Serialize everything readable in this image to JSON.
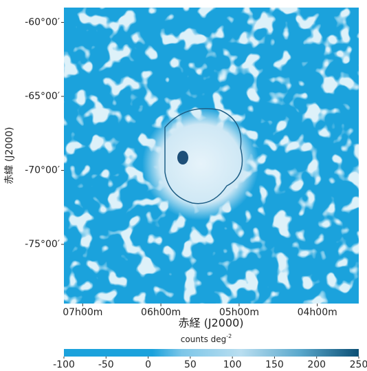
{
  "chart_data": {
    "type": "image",
    "x_label": "赤経 (J2000)",
    "y_label": "赤緯 (J2000)",
    "xlim": [
      7.24,
      3.47
    ],
    "ylim": [
      -79,
      -59
    ],
    "xticks": [
      {
        "value": 7,
        "label": "07h00m"
      },
      {
        "value": 6,
        "label": "06h00m"
      },
      {
        "value": 5,
        "label": "05h00m"
      },
      {
        "value": 4,
        "label": "04h00m"
      }
    ],
    "yticks": [
      {
        "value": -60,
        "label": "-60°00′"
      },
      {
        "value": -65,
        "label": "-65°00′"
      },
      {
        "value": -70,
        "label": "-70°00′"
      },
      {
        "value": -75,
        "label": "-75°00′"
      }
    ],
    "colorbar": {
      "label": "counts deg",
      "label_exponent": "-2",
      "lim": [
        -100,
        250
      ],
      "ticks": [
        -100,
        -50,
        0,
        50,
        100,
        150,
        200,
        250
      ]
    }
  }
}
